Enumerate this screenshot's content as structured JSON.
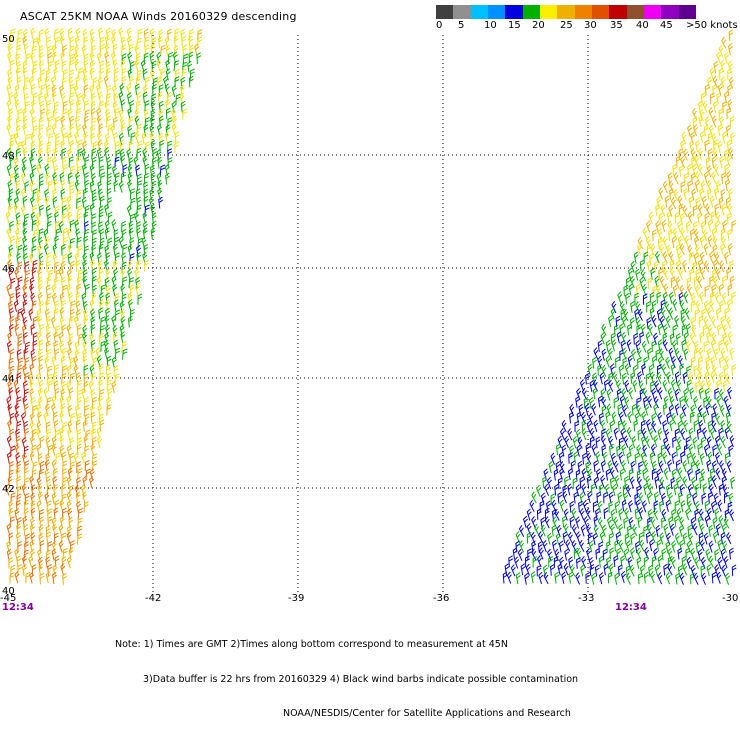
{
  "header": {
    "title": "ASCAT 25KM NOAA Winds 20160329 descending"
  },
  "legend": {
    "colors": [
      "#404040",
      "#909090",
      "#00c0ff",
      "#0090ff",
      "#0000e0",
      "#00b000",
      "#f8f000",
      "#f0b000",
      "#f08000",
      "#e05000",
      "#c00000",
      "#905030",
      "#f000f0",
      "#9000c0",
      "#600090"
    ],
    "labels": [
      "0",
      "5",
      "10",
      "15",
      "20",
      "25",
      "30",
      "35",
      "40",
      "45",
      ">50 knots"
    ]
  },
  "map": {
    "lat_labels": [
      "50",
      "48",
      "46",
      "44",
      "42",
      "40"
    ],
    "lon_labels": [
      "-45",
      "-42",
      "-39",
      "-36",
      "-33",
      "-30"
    ],
    "time_labels": [
      "12:34",
      "12:34"
    ],
    "time_color": "#8000a0"
  },
  "notes": {
    "line1": "Note: 1) Times are GMT 2)Times along bottom correspond to measurement at 45N",
    "line2": "3)Data buffer is 22 hrs from 20160329 4) Black wind barbs indicate possible contamination",
    "line3": "NOAA/NESDIS/Center for Satellite Applications and Research"
  }
}
